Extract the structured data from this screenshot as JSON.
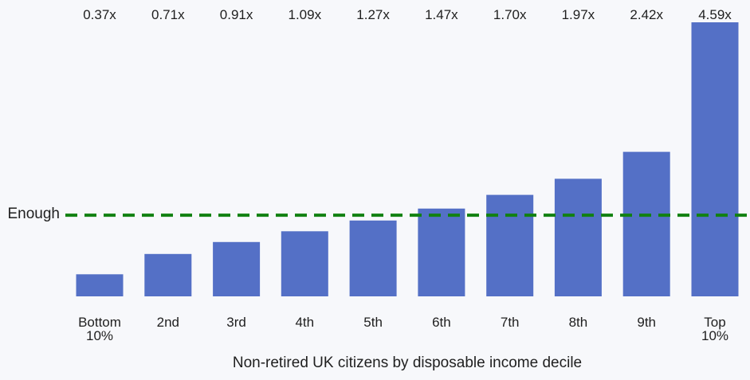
{
  "chart_data": {
    "type": "bar",
    "categories": [
      [
        "Bottom",
        "10%"
      ],
      [
        "2nd"
      ],
      [
        "3rd"
      ],
      [
        "4th"
      ],
      [
        "5th"
      ],
      [
        "6th"
      ],
      [
        "7th"
      ],
      [
        "8th"
      ],
      [
        "9th"
      ],
      [
        "Top",
        "10%"
      ]
    ],
    "values": [
      0.37,
      0.71,
      0.91,
      1.09,
      1.27,
      1.47,
      1.7,
      1.97,
      2.42,
      4.59
    ],
    "value_labels": [
      "0.37x",
      "0.71x",
      "0.91x",
      "1.09x",
      "1.27x",
      "1.47x",
      "1.70x",
      "1.97x",
      "2.42x",
      "4.59x"
    ],
    "xlabel": "Non-retired UK citizens by disposable income decile",
    "ylabel": "",
    "ylim": [
      0,
      4.59
    ],
    "reference_line": {
      "label": "Enough",
      "value": 1.0,
      "style": "dashed",
      "color": "#118111"
    },
    "bar_color": "#5470c6",
    "grid": false,
    "legend": "none"
  }
}
